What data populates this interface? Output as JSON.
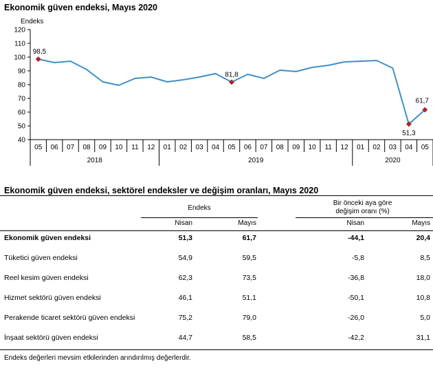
{
  "chart_data": {
    "type": "line",
    "title": "Ekonomik güven endeksi, Mayıs 2020",
    "ylabel": "Endeks",
    "ylim": [
      40,
      120
    ],
    "yticks": [
      40,
      50,
      60,
      70,
      80,
      90,
      100,
      110,
      120
    ],
    "months": [
      "05",
      "06",
      "07",
      "08",
      "09",
      "10",
      "11",
      "12",
      "01",
      "02",
      "03",
      "04",
      "05",
      "06",
      "07",
      "08",
      "09",
      "10",
      "11",
      "12",
      "01",
      "02",
      "03",
      "04",
      "05"
    ],
    "years": [
      {
        "label": "2018",
        "count": 8
      },
      {
        "label": "2019",
        "count": 12
      },
      {
        "label": "2020",
        "count": 5
      }
    ],
    "values": [
      98.5,
      96.0,
      97.0,
      91.0,
      82.0,
      79.5,
      84.5,
      85.5,
      82.0,
      83.5,
      85.5,
      88.0,
      81.8,
      87.5,
      84.5,
      90.5,
      89.5,
      92.5,
      94.0,
      96.5,
      97.0,
      97.5,
      92.0,
      51.3,
      61.7
    ],
    "highlighted": [
      {
        "index": 0,
        "label": "98,5"
      },
      {
        "index": 12,
        "label": "81,8"
      },
      {
        "index": 23,
        "label": "51,3"
      },
      {
        "index": 24,
        "label": "61,7"
      }
    ],
    "line_color": "#3e8fc6",
    "marker_color": "#a8262b"
  },
  "table": {
    "title": "Ekonomik güven endeksi, sektörel endeksler ve değişim oranları, Mayıs 2020",
    "group_endeks": "Endeks",
    "group_change_line1": "Bir önceki aya göre",
    "group_change_line2": "değişim oranı (%)",
    "col_nisan": "Nisan",
    "col_mayis": "Mayıs",
    "col_nisan2": "Nisan",
    "col_mayis2": "Mayıs",
    "rows": [
      {
        "name": "Ekonomik güven endeksi",
        "nisan": "51,3",
        "mayis": "61,7",
        "ch_nisan": "-44,1",
        "ch_mayis": "20,4"
      },
      {
        "name": "Tüketici güven endeksi",
        "nisan": "54,9",
        "mayis": "59,5",
        "ch_nisan": "-5,8",
        "ch_mayis": "8,5"
      },
      {
        "name": "Reel kesim güven endeksi",
        "nisan": "62,3",
        "mayis": "73,5",
        "ch_nisan": "-36,8",
        "ch_mayis": "18,0"
      },
      {
        "name": "Hizmet sektörü güven endeksi",
        "nisan": "46,1",
        "mayis": "51,1",
        "ch_nisan": "-50,1",
        "ch_mayis": "10,8"
      },
      {
        "name": "Perakende ticaret sektörü güven endeksi",
        "nisan": "75,2",
        "mayis": "79,0",
        "ch_nisan": "-26,0",
        "ch_mayis": "5,0"
      },
      {
        "name": "İnşaat sektörü güven endeksi",
        "nisan": "44,7",
        "mayis": "58,5",
        "ch_nisan": "-42,2",
        "ch_mayis": "31,1"
      }
    ]
  },
  "footnote": "Endeks değerleri mevsim etkilerinden arındırılmış değerlerdir."
}
